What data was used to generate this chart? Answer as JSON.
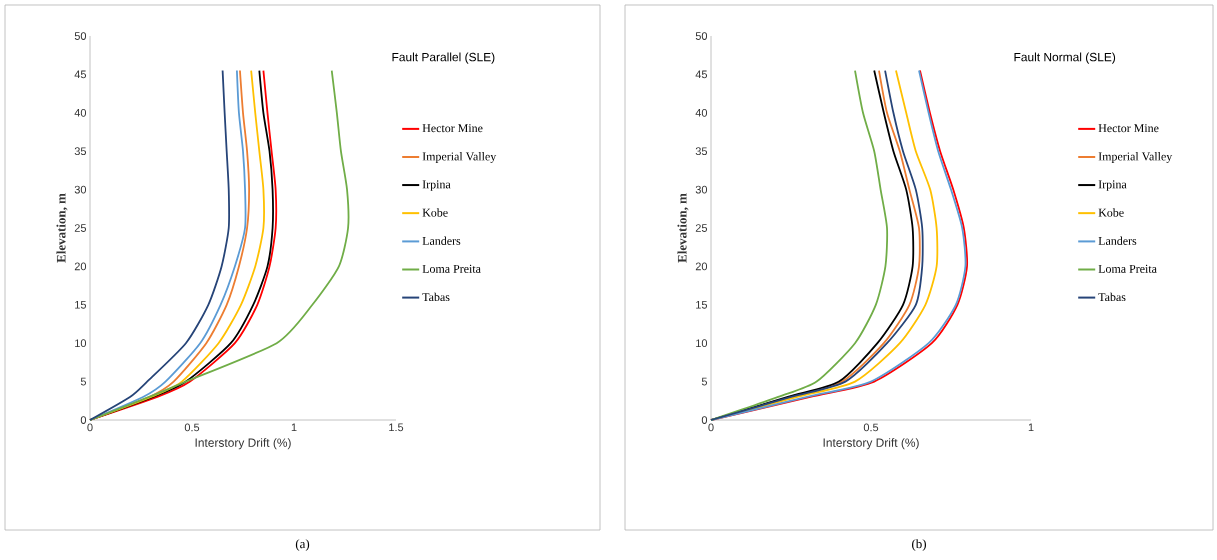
{
  "chart_data": [
    {
      "type": "line",
      "title": "Fault Parallel (SLE)",
      "xlabel": "Interstory Drift (%)",
      "ylabel": "Elevation, m",
      "annotations": [
        "(a)"
      ],
      "xlim": [
        0,
        1.5
      ],
      "xticks": [
        0,
        0.5,
        1,
        1.5
      ],
      "ylim": [
        0,
        50
      ],
      "yticks": [
        0,
        5,
        10,
        15,
        20,
        25,
        30,
        35,
        40,
        45,
        50
      ],
      "legend": "right",
      "series": [
        {
          "name": "Hector Mine",
          "color": "#ff0000",
          "x": [
            0,
            0.33,
            0.49,
            0.71,
            0.82,
            0.88,
            0.91,
            0.91,
            0.89,
            0.87,
            0.85
          ],
          "values": [
            0,
            3,
            5,
            10,
            15,
            20,
            25,
            30,
            35,
            40,
            45.5
          ]
        },
        {
          "name": "Imperial Valley",
          "color": "#ed7d31",
          "x": [
            0,
            0.29,
            0.41,
            0.57,
            0.67,
            0.73,
            0.77,
            0.78,
            0.77,
            0.75,
            0.735
          ],
          "values": [
            0,
            3,
            5,
            10,
            15,
            20,
            25,
            30,
            35,
            40,
            45.5
          ]
        },
        {
          "name": "Irpina",
          "color": "#000000",
          "x": [
            0,
            0.31,
            0.47,
            0.69,
            0.8,
            0.87,
            0.895,
            0.895,
            0.88,
            0.85,
            0.83
          ],
          "values": [
            0,
            3,
            5,
            10,
            15,
            20,
            25,
            30,
            35,
            40,
            45.5
          ]
        },
        {
          "name": "Kobe",
          "color": "#ffc000",
          "x": [
            0,
            0.3,
            0.45,
            0.63,
            0.74,
            0.81,
            0.85,
            0.85,
            0.83,
            0.81,
            0.79
          ],
          "values": [
            0,
            3,
            5,
            10,
            15,
            20,
            25,
            30,
            35,
            40,
            45.5
          ]
        },
        {
          "name": "Landers",
          "color": "#5b9bd5",
          "x": [
            0,
            0.26,
            0.37,
            0.54,
            0.64,
            0.71,
            0.76,
            0.76,
            0.75,
            0.73,
            0.72
          ],
          "values": [
            0,
            3,
            5,
            10,
            15,
            20,
            25,
            30,
            35,
            40,
            45.5
          ]
        },
        {
          "name": "Loma Preita",
          "color": "#70ad47",
          "x": [
            0,
            0.29,
            0.47,
            0.915,
            1.09,
            1.22,
            1.265,
            1.26,
            1.23,
            1.21,
            1.185
          ],
          "values": [
            0,
            3,
            5,
            10,
            15,
            20,
            25,
            30,
            35,
            40,
            45.5
          ]
        },
        {
          "name": "Tabas",
          "color": "#264478",
          "x": [
            0,
            0.196,
            0.28,
            0.47,
            0.58,
            0.645,
            0.68,
            0.68,
            0.67,
            0.66,
            0.65
          ],
          "values": [
            0,
            3,
            5,
            10,
            15,
            20,
            25,
            30,
            35,
            40,
            45.5
          ]
        }
      ]
    },
    {
      "type": "line",
      "title": "Fault Normal (SLE)",
      "xlabel": "Interstory Drift (%)",
      "ylabel": "Elevation, m",
      "annotations": [
        "(b)"
      ],
      "xlim": [
        0,
        1
      ],
      "xticks": [
        0,
        0.5,
        1
      ],
      "ylim": [
        0,
        50
      ],
      "yticks": [
        0,
        5,
        10,
        15,
        20,
        25,
        30,
        35,
        40,
        45,
        50
      ],
      "legend": "right",
      "series": [
        {
          "name": "Hector Mine",
          "color": "#ff0000",
          "x": [
            0,
            0.31,
            0.51,
            0.69,
            0.77,
            0.8,
            0.79,
            0.757,
            0.716,
            0.684,
            0.653
          ],
          "values": [
            0,
            3,
            5,
            10,
            15,
            20,
            25,
            30,
            35,
            40,
            45.5
          ]
        },
        {
          "name": "Imperial Valley",
          "color": "#ed7d31",
          "x": [
            0,
            0.25,
            0.41,
            0.54,
            0.62,
            0.65,
            0.65,
            0.62,
            0.59,
            0.55,
            0.525
          ],
          "values": [
            0,
            3,
            5,
            10,
            15,
            20,
            25,
            30,
            35,
            40,
            45.5
          ]
        },
        {
          "name": "Irpina",
          "color": "#000000",
          "x": [
            0,
            0.24,
            0.4,
            0.52,
            0.6,
            0.63,
            0.63,
            0.61,
            0.57,
            0.54,
            0.51
          ],
          "values": [
            0,
            3,
            5,
            10,
            15,
            20,
            25,
            30,
            35,
            40,
            45.5
          ]
        },
        {
          "name": "Kobe",
          "color": "#ffc000",
          "x": [
            0,
            0.27,
            0.45,
            0.59,
            0.67,
            0.705,
            0.705,
            0.685,
            0.64,
            0.61,
            0.578
          ],
          "values": [
            0,
            3,
            5,
            10,
            15,
            20,
            25,
            30,
            35,
            40,
            45.5
          ]
        },
        {
          "name": "Landers",
          "color": "#5b9bd5",
          "x": [
            0,
            0.3,
            0.5,
            0.68,
            0.765,
            0.795,
            0.785,
            0.75,
            0.71,
            0.68,
            0.65
          ],
          "values": [
            0,
            3,
            5,
            10,
            15,
            20,
            25,
            30,
            35,
            40,
            45.5
          ]
        },
        {
          "name": "Loma Preita",
          "color": "#70ad47",
          "x": [
            0,
            0.21,
            0.33,
            0.45,
            0.515,
            0.545,
            0.55,
            0.53,
            0.51,
            0.475,
            0.45
          ],
          "values": [
            0,
            3,
            5,
            10,
            15,
            20,
            25,
            30,
            35,
            40,
            45.5
          ]
        },
        {
          "name": "Tabas",
          "color": "#264478",
          "x": [
            0,
            0.25,
            0.42,
            0.55,
            0.64,
            0.66,
            0.66,
            0.64,
            0.6,
            0.57,
            0.544
          ],
          "values": [
            0,
            3,
            5,
            10,
            15,
            20,
            25,
            30,
            35,
            40,
            45.5
          ]
        }
      ]
    }
  ]
}
